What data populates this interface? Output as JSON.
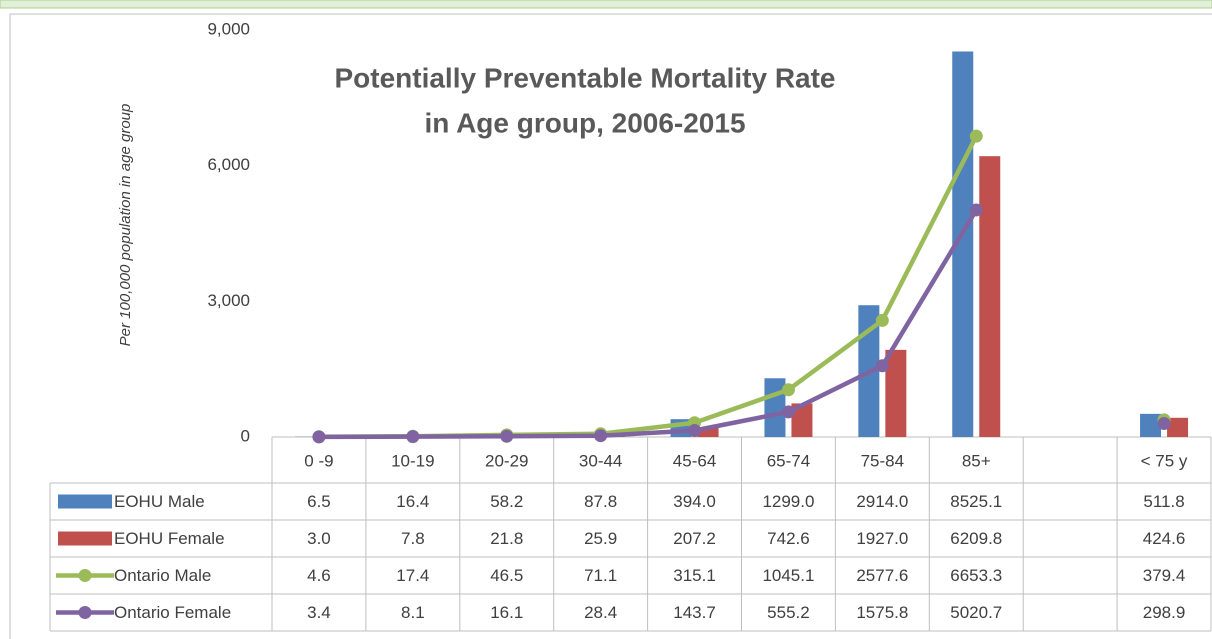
{
  "chart_data": {
    "type": "bar_line_table",
    "title": [
      "Potentially Preventable Mortality Rate",
      "in Age group, 2006-2015"
    ],
    "y_axis_label": "Per 100,000 population in age group",
    "categories": [
      "0 -9",
      "10-19",
      "20-29",
      "30-44",
      "45-64",
      "65-74",
      "75-84",
      "85+",
      null,
      "< 75 y"
    ],
    "ylim": [
      0,
      9000
    ],
    "yticks": [
      0,
      {
        "value": 3000,
        "label": "3,000"
      },
      {
        "value": 6000,
        "label": "6,000"
      },
      {
        "value": 9000,
        "label": "9,000"
      }
    ],
    "grid": false,
    "series": [
      {
        "name": "EOHU Male",
        "kind": "bar",
        "color": "#4f81bd",
        "values": [
          6.5,
          16.4,
          58.2,
          87.8,
          394.0,
          1299.0,
          2914.0,
          8525.1,
          null,
          511.8
        ],
        "value_labels": [
          "6.5",
          "16.4",
          "58.2",
          "87.8",
          "394.0",
          "1299.0",
          "2914.0",
          "8525.1",
          null,
          "511.8"
        ]
      },
      {
        "name": "EOHU Female",
        "kind": "bar",
        "color": "#c0504d",
        "values": [
          3.0,
          7.8,
          21.8,
          25.9,
          207.2,
          742.6,
          1927.0,
          6209.8,
          null,
          424.6
        ],
        "value_labels": [
          "3.0",
          "7.8",
          "21.8",
          "25.9",
          "207.2",
          "742.6",
          "1927.0",
          "6209.8",
          null,
          "424.6"
        ]
      },
      {
        "name": "Ontario Male",
        "kind": "line",
        "color": "#9bbb59",
        "values": [
          4.6,
          17.4,
          46.5,
          71.1,
          315.1,
          1045.1,
          2577.6,
          6653.3,
          null,
          379.4
        ],
        "value_labels": [
          "4.6",
          "17.4",
          "46.5",
          "71.1",
          "315.1",
          "1045.1",
          "2577.6",
          "6653.3",
          null,
          "379.4"
        ]
      },
      {
        "name": "Ontario Female",
        "kind": "line",
        "color": "#8064a2",
        "values": [
          3.4,
          8.1,
          16.1,
          28.4,
          143.7,
          555.2,
          1575.8,
          5020.7,
          null,
          298.9
        ],
        "value_labels": [
          "3.4",
          "8.1",
          "16.1",
          "28.4",
          "143.7",
          "555.2",
          "1575.8",
          "5020.7",
          null,
          "298.9"
        ]
      }
    ]
  }
}
